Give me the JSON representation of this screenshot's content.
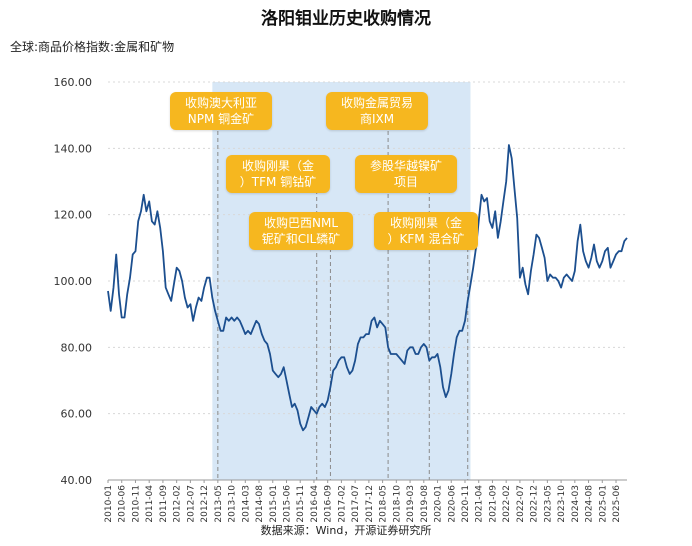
{
  "page": {
    "title": "洛阳钼业历史收购情况",
    "subtitle": "全球:商品价格指数:金属和矿物",
    "source": "数据来源：Wind，开源证券研究所"
  },
  "annotations": [
    {
      "id": "npm",
      "line1": "收购澳大利亚",
      "line2": "NPM 铜金矿",
      "date": "2013-05"
    },
    {
      "id": "tfm",
      "line1": "收购刚果（金",
      "line2": "）TFM 铜钴矿",
      "date": "2016-05"
    },
    {
      "id": "nml",
      "line1": "收购巴西NML",
      "line2": "铌矿和CIL磷矿",
      "date": "2016-10"
    },
    {
      "id": "ixm",
      "line1": "收购金属贸易",
      "line2": "商IXM",
      "date": "2018-07"
    },
    {
      "id": "hy",
      "line1": "参股华越镍矿",
      "line2": "项目",
      "date": "2019-10"
    },
    {
      "id": "kfm",
      "line1": "收购刚果（金",
      "line2": "）KFM 混合矿",
      "date": "2020-12"
    }
  ],
  "colors": {
    "line": "#1c4f8f",
    "shade": "#d7e7f6",
    "annotation": "#f6b71f",
    "grid": "#d8d8d8"
  },
  "chart_data": {
    "type": "line",
    "title": "洛阳钼业历史收购情况",
    "ylabel": "全球:商品价格指数:金属和矿物",
    "xlabel": "",
    "ylim": [
      40,
      160
    ],
    "yticks": [
      "40.00",
      "60.00",
      "80.00",
      "100.00",
      "120.00",
      "140.00",
      "160.00"
    ],
    "xticks": [
      "2010-01",
      "2010-06",
      "2010-11",
      "2011-04",
      "2011-09",
      "2012-02",
      "2012-07",
      "2012-12",
      "2013-05",
      "2013-10",
      "2014-03",
      "2014-08",
      "2015-01",
      "2015-06",
      "2015-11",
      "2016-04",
      "2016-09",
      "2017-02",
      "2017-07",
      "2017-12",
      "2018-05",
      "2018-10",
      "2019-03",
      "2019-08",
      "2020-01",
      "2020-06",
      "2020-11",
      "2021-04",
      "2021-09",
      "2022-02",
      "2022-07",
      "2022-12",
      "2023-05",
      "2023-10",
      "2024-03",
      "2024-08",
      "2025-01",
      "2025-06"
    ],
    "shaded_range": [
      "2013-03",
      "2021-01"
    ],
    "series": [
      {
        "name": "全球:商品价格指数:金属和矿物",
        "points": [
          [
            "2010-01",
            97
          ],
          [
            "2010-02",
            91
          ],
          [
            "2010-03",
            98
          ],
          [
            "2010-04",
            108
          ],
          [
            "2010-05",
            96
          ],
          [
            "2010-06",
            89
          ],
          [
            "2010-07",
            89
          ],
          [
            "2010-08",
            96
          ],
          [
            "2010-09",
            101
          ],
          [
            "2010-10",
            108
          ],
          [
            "2010-11",
            109
          ],
          [
            "2010-12",
            118
          ],
          [
            "2011-01",
            121
          ],
          [
            "2011-02",
            126
          ],
          [
            "2011-03",
            121
          ],
          [
            "2011-04",
            124
          ],
          [
            "2011-05",
            118
          ],
          [
            "2011-06",
            117
          ],
          [
            "2011-07",
            121
          ],
          [
            "2011-08",
            116
          ],
          [
            "2011-09",
            109
          ],
          [
            "2011-10",
            98
          ],
          [
            "2011-11",
            96
          ],
          [
            "2011-12",
            94
          ],
          [
            "2012-01",
            99
          ],
          [
            "2012-02",
            104
          ],
          [
            "2012-03",
            103
          ],
          [
            "2012-04",
            100
          ],
          [
            "2012-05",
            95
          ],
          [
            "2012-06",
            92
          ],
          [
            "2012-07",
            93
          ],
          [
            "2012-08",
            88
          ],
          [
            "2012-09",
            92
          ],
          [
            "2012-10",
            95
          ],
          [
            "2012-11",
            94
          ],
          [
            "2012-12",
            98
          ],
          [
            "2013-01",
            101
          ],
          [
            "2013-02",
            101
          ],
          [
            "2013-03",
            95
          ],
          [
            "2013-04",
            91
          ],
          [
            "2013-05",
            88
          ],
          [
            "2013-06",
            85
          ],
          [
            "2013-07",
            85
          ],
          [
            "2013-08",
            89
          ],
          [
            "2013-09",
            88
          ],
          [
            "2013-10",
            89
          ],
          [
            "2013-11",
            88
          ],
          [
            "2013-12",
            89
          ],
          [
            "2014-01",
            88
          ],
          [
            "2014-02",
            86
          ],
          [
            "2014-03",
            84
          ],
          [
            "2014-04",
            85
          ],
          [
            "2014-05",
            84
          ],
          [
            "2014-06",
            86
          ],
          [
            "2014-07",
            88
          ],
          [
            "2014-08",
            87
          ],
          [
            "2014-09",
            84
          ],
          [
            "2014-10",
            82
          ],
          [
            "2014-11",
            81
          ],
          [
            "2014-12",
            78
          ],
          [
            "2015-01",
            73
          ],
          [
            "2015-02",
            72
          ],
          [
            "2015-03",
            71
          ],
          [
            "2015-04",
            72
          ],
          [
            "2015-05",
            74
          ],
          [
            "2015-06",
            70
          ],
          [
            "2015-07",
            66
          ],
          [
            "2015-08",
            62
          ],
          [
            "2015-09",
            63
          ],
          [
            "2015-10",
            61
          ],
          [
            "2015-11",
            57
          ],
          [
            "2015-12",
            55
          ],
          [
            "2016-01",
            56
          ],
          [
            "2016-02",
            59
          ],
          [
            "2016-03",
            62
          ],
          [
            "2016-04",
            61
          ],
          [
            "2016-05",
            60
          ],
          [
            "2016-06",
            62
          ],
          [
            "2016-07",
            63
          ],
          [
            "2016-08",
            62
          ],
          [
            "2016-09",
            64
          ],
          [
            "2016-10",
            68
          ],
          [
            "2016-11",
            73
          ],
          [
            "2016-12",
            74
          ],
          [
            "2017-01",
            76
          ],
          [
            "2017-02",
            77
          ],
          [
            "2017-03",
            77
          ],
          [
            "2017-04",
            74
          ],
          [
            "2017-05",
            72
          ],
          [
            "2017-06",
            73
          ],
          [
            "2017-07",
            76
          ],
          [
            "2017-08",
            81
          ],
          [
            "2017-09",
            83
          ],
          [
            "2017-10",
            83
          ],
          [
            "2017-11",
            84
          ],
          [
            "2017-12",
            84
          ],
          [
            "2018-01",
            88
          ],
          [
            "2018-02",
            89
          ],
          [
            "2018-03",
            86
          ],
          [
            "2018-04",
            88
          ],
          [
            "2018-05",
            87
          ],
          [
            "2018-06",
            86
          ],
          [
            "2018-07",
            80
          ],
          [
            "2018-08",
            78
          ],
          [
            "2018-09",
            78
          ],
          [
            "2018-10",
            78
          ],
          [
            "2018-11",
            77
          ],
          [
            "2018-12",
            76
          ],
          [
            "2019-01",
            75
          ],
          [
            "2019-02",
            79
          ],
          [
            "2019-03",
            80
          ],
          [
            "2019-04",
            80
          ],
          [
            "2019-05",
            78
          ],
          [
            "2019-06",
            78
          ],
          [
            "2019-07",
            80
          ],
          [
            "2019-08",
            81
          ],
          [
            "2019-09",
            80
          ],
          [
            "2019-10",
            76
          ],
          [
            "2019-11",
            77
          ],
          [
            "2019-12",
            77
          ],
          [
            "2020-01",
            78
          ],
          [
            "2020-02",
            74
          ],
          [
            "2020-03",
            68
          ],
          [
            "2020-04",
            65
          ],
          [
            "2020-05",
            67
          ],
          [
            "2020-06",
            72
          ],
          [
            "2020-07",
            78
          ],
          [
            "2020-08",
            83
          ],
          [
            "2020-09",
            85
          ],
          [
            "2020-10",
            85
          ],
          [
            "2020-11",
            88
          ],
          [
            "2020-12",
            94
          ],
          [
            "2021-01",
            99
          ],
          [
            "2021-02",
            104
          ],
          [
            "2021-03",
            110
          ],
          [
            "2021-04",
            118
          ],
          [
            "2021-05",
            126
          ],
          [
            "2021-06",
            124
          ],
          [
            "2021-07",
            125
          ],
          [
            "2021-08",
            118
          ],
          [
            "2021-09",
            116
          ],
          [
            "2021-10",
            121
          ],
          [
            "2021-11",
            113
          ],
          [
            "2021-12",
            118
          ],
          [
            "2022-01",
            124
          ],
          [
            "2022-02",
            130
          ],
          [
            "2022-03",
            141
          ],
          [
            "2022-04",
            137
          ],
          [
            "2022-05",
            128
          ],
          [
            "2022-06",
            119
          ],
          [
            "2022-07",
            101
          ],
          [
            "2022-08",
            104
          ],
          [
            "2022-09",
            99
          ],
          [
            "2022-10",
            96
          ],
          [
            "2022-11",
            103
          ],
          [
            "2022-12",
            108
          ],
          [
            "2023-01",
            114
          ],
          [
            "2023-02",
            113
          ],
          [
            "2023-03",
            110
          ],
          [
            "2023-04",
            107
          ],
          [
            "2023-05",
            100
          ],
          [
            "2023-06",
            102
          ],
          [
            "2023-07",
            101
          ],
          [
            "2023-08",
            101
          ],
          [
            "2023-09",
            100
          ],
          [
            "2023-10",
            98
          ],
          [
            "2023-11",
            101
          ],
          [
            "2023-12",
            102
          ],
          [
            "2024-01",
            101
          ],
          [
            "2024-02",
            100
          ],
          [
            "2024-03",
            103
          ],
          [
            "2024-04",
            112
          ],
          [
            "2024-05",
            117
          ],
          [
            "2024-06",
            109
          ],
          [
            "2024-07",
            106
          ],
          [
            "2024-08",
            104
          ],
          [
            "2024-09",
            107
          ],
          [
            "2024-10",
            111
          ],
          [
            "2024-11",
            106
          ],
          [
            "2024-12",
            104
          ],
          [
            "2025-01",
            106
          ],
          [
            "2025-02",
            109
          ],
          [
            "2025-03",
            110
          ],
          [
            "2025-04",
            104
          ],
          [
            "2025-05",
            106
          ],
          [
            "2025-06",
            108
          ],
          [
            "2025-07",
            109
          ],
          [
            "2025-08",
            109
          ],
          [
            "2025-09",
            112
          ],
          [
            "2025-10",
            113
          ]
        ]
      }
    ]
  }
}
